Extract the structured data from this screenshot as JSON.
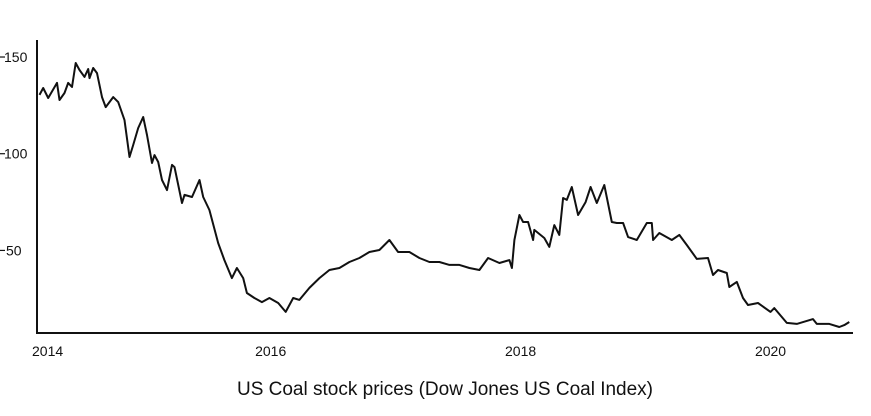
{
  "chart_data": {
    "type": "line",
    "title": "US Coal stock prices (Dow Jones US Coal Index)",
    "xlabel": "",
    "ylabel": "",
    "xlim": [
      2014.13,
      2020.66
    ],
    "ylim": [
      7.3,
      158.8
    ],
    "grid": false,
    "x_ticks": [
      {
        "value": 2014.13,
        "label": "2014"
      },
      {
        "value": 2016,
        "label": "2016"
      },
      {
        "value": 2018,
        "label": "2018"
      },
      {
        "value": 2020,
        "label": "2020"
      }
    ],
    "y_ticks": [
      {
        "value": 150,
        "label": "150"
      },
      {
        "value": 100,
        "label": "100"
      },
      {
        "value": 50,
        "label": "50"
      }
    ],
    "series": [
      {
        "name": "Dow Jones US Coal Index",
        "color": "#111111",
        "x": [
          2014.15,
          2014.18,
          2014.22,
          2014.29,
          2014.31,
          2014.35,
          2014.38,
          2014.41,
          2014.44,
          2014.47,
          2014.51,
          2014.54,
          2014.55,
          2014.58,
          2014.61,
          2014.65,
          2014.68,
          2014.74,
          2014.78,
          2014.83,
          2014.87,
          2014.9,
          2014.94,
          2014.98,
          2015.01,
          2015.05,
          2015.07,
          2015.1,
          2015.13,
          2015.17,
          2015.21,
          2015.23,
          2015.29,
          2015.31,
          2015.37,
          2015.43,
          2015.46,
          2015.51,
          2015.58,
          2015.63,
          2015.69,
          2015.73,
          2015.78,
          2015.81,
          2015.87,
          2015.93,
          2015.99,
          2016.06,
          2016.12,
          2016.18,
          2016.23,
          2016.31,
          2016.39,
          2016.47,
          2016.55,
          2016.63,
          2016.71,
          2016.79,
          2016.87,
          2016.95,
          2017.02,
          2017.11,
          2017.19,
          2017.27,
          2017.35,
          2017.43,
          2017.51,
          2017.59,
          2017.67,
          2017.74,
          2017.83,
          2017.91,
          2017.93,
          2017.95,
          2017.99,
          2018.02,
          2018.06,
          2018.1,
          2018.11,
          2018.19,
          2018.23,
          2018.27,
          2018.31,
          2018.34,
          2018.37,
          2018.41,
          2018.46,
          2018.52,
          2018.56,
          2018.61,
          2018.67,
          2018.73,
          2018.77,
          2018.82,
          2018.86,
          2018.93,
          2019.01,
          2019.05,
          2019.06,
          2019.11,
          2019.21,
          2019.27,
          2019.33,
          2019.41,
          2019.5,
          2019.54,
          2019.58,
          2019.65,
          2019.67,
          2019.73,
          2019.78,
          2019.82,
          2019.9,
          2020.0,
          2020.03,
          2020.13,
          2020.21,
          2020.34,
          2020.37,
          2020.47,
          2020.55,
          2020.59,
          2020.63
        ],
        "y": [
          130.4,
          134.0,
          128.8,
          136.6,
          127.8,
          131.4,
          136.6,
          134.5,
          146.9,
          143.3,
          139.7,
          143.8,
          139.1,
          144.3,
          141.7,
          129.3,
          124.1,
          129.3,
          126.7,
          117.4,
          98.3,
          104.5,
          113.3,
          119.0,
          109.7,
          95.2,
          99.3,
          95.7,
          86.4,
          81.2,
          94.2,
          93.1,
          74.5,
          78.7,
          77.6,
          86.4,
          77.6,
          70.9,
          53.8,
          45.0,
          35.7,
          40.9,
          35.7,
          28.0,
          25.4,
          23.3,
          25.4,
          22.8,
          18.2,
          25.4,
          24.4,
          30.6,
          35.7,
          39.9,
          40.9,
          44.0,
          46.1,
          49.2,
          50.2,
          55.4,
          49.2,
          49.2,
          46.1,
          44.0,
          44.0,
          42.5,
          42.5,
          40.9,
          39.9,
          46.1,
          43.5,
          45.0,
          40.9,
          55.4,
          68.3,
          64.7,
          64.7,
          55.4,
          60.6,
          56.4,
          51.8,
          63.1,
          58.0,
          77.1,
          76.1,
          82.8,
          68.3,
          75.0,
          82.8,
          74.5,
          83.8,
          64.7,
          64.2,
          64.2,
          56.9,
          55.4,
          64.2,
          64.2,
          55.4,
          59.0,
          55.4,
          58.0,
          52.8,
          45.6,
          46.1,
          37.3,
          39.9,
          38.3,
          31.1,
          33.7,
          25.4,
          21.8,
          22.8,
          18.2,
          20.2,
          12.5,
          12.0,
          14.5,
          12.0,
          12.0,
          10.4,
          11.4,
          13.0
        ]
      }
    ]
  }
}
